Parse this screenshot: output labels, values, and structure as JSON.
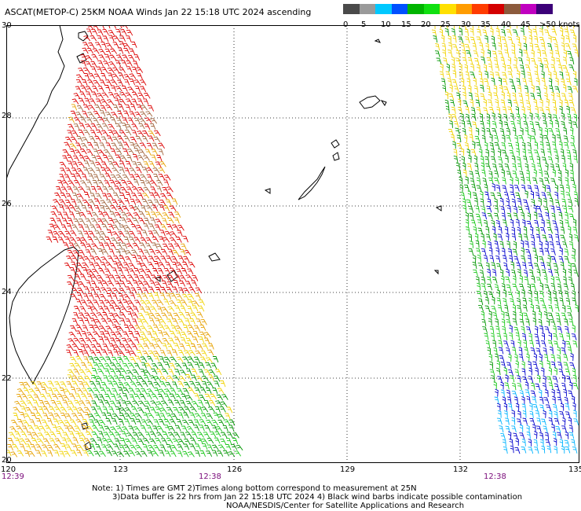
{
  "title": "ASCAT(METOP-C) 25KM NOAA Winds Jan 22 15:18 UTC 2024 ascending",
  "legend": {
    "labels": [
      "0",
      "5",
      "10",
      "15",
      "20",
      "25",
      "30",
      "35",
      "40",
      "45",
      ">50 knots"
    ],
    "colors": [
      "#4a4a4a",
      "#9a9a9a",
      "#00c8ff",
      "#0050ff",
      "#00b400",
      "#10e010",
      "#ffe000",
      "#ff9c00",
      "#ff3c00",
      "#d40000",
      "#8c5a3c",
      "#c000c0",
      "#3c0078"
    ]
  },
  "axes": {
    "lat_labels": [
      "30",
      "28",
      "26",
      "24",
      "22",
      "20"
    ],
    "lon_labels": [
      "120",
      "123",
      "126",
      "129",
      "132",
      "135"
    ]
  },
  "time_labels": [
    "12:39",
    "12:38",
    "12:38"
  ],
  "notes": {
    "line1": "Note: 1) Times are GMT 2)Times along bottom correspond to measurement at 25N",
    "line2": "3)Data buffer is 22 hrs from Jan 22 15:18 UTC 2024 4) Black wind barbs indicate possible contamination",
    "line3": "NOAA/NESDIS/Center for Satellite Applications and Research"
  },
  "wind_colors": {
    "calm": "#00b4ff",
    "light": "#0000cc",
    "moderate": "#009600",
    "fresh": "#19c819",
    "strong": "#f0d200",
    "gale": "#e6a000",
    "storm": "#dc0000",
    "severe": "#a0643c",
    "extreme": "#b400b4"
  },
  "land_color": "#000000"
}
